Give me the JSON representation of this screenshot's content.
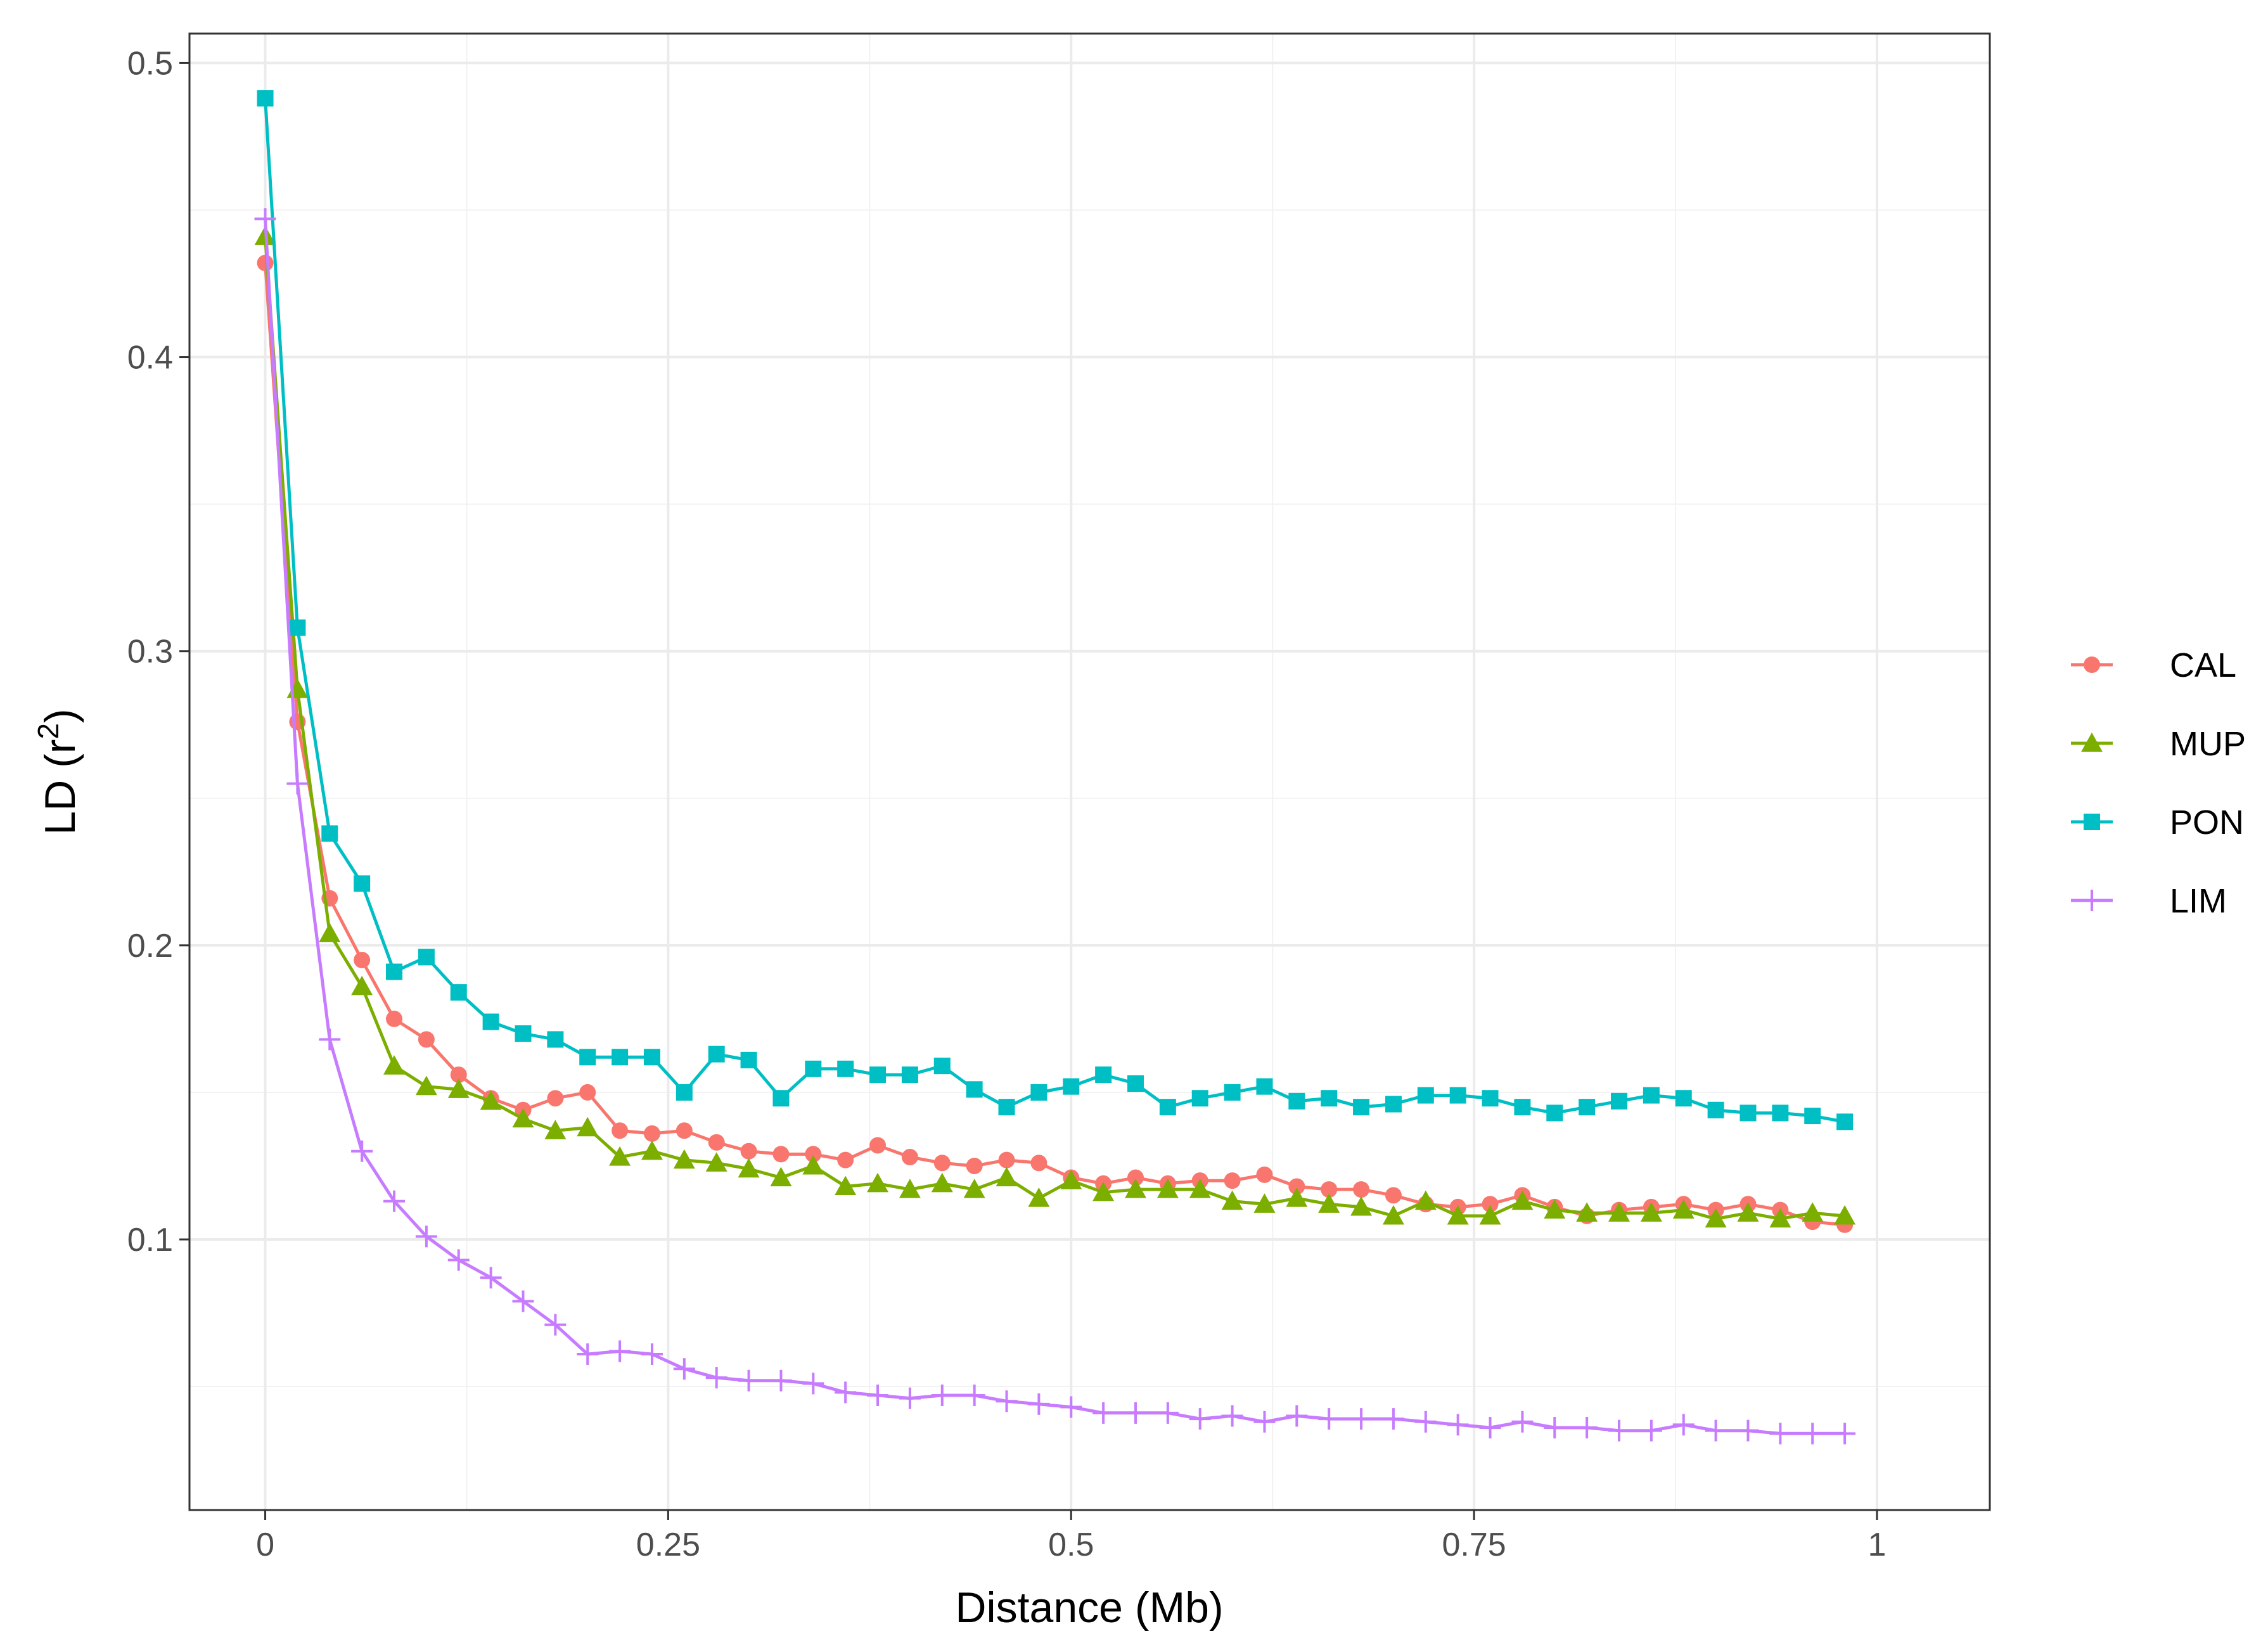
{
  "chart_data": {
    "type": "line",
    "xlabel": "Distance (Mb)",
    "ylabel_main": "LD (r",
    "ylabel_sup": "2",
    "ylabel_close": ")",
    "xlim": [
      -0.047,
      1.07
    ],
    "ylim": [
      0.008,
      0.51
    ],
    "x_ticks": [
      0,
      0.25,
      0.5,
      0.75,
      1
    ],
    "x_tick_labels": [
      "0",
      "0.25",
      "0.5",
      "0.75",
      "1"
    ],
    "y_ticks": [
      0.1,
      0.2,
      0.3,
      0.4,
      0.5
    ],
    "y_tick_labels": [
      "0.1",
      "0.2",
      "0.3",
      "0.4",
      "0.5"
    ],
    "y_minor_ticks": [
      0.05,
      0.15,
      0.25,
      0.35,
      0.45
    ],
    "x_minor_ticks": [
      0.125,
      0.375,
      0.625,
      0.875
    ],
    "grid": true,
    "legend_position": "right",
    "x": [
      0,
      0.02,
      0.04,
      0.06,
      0.08,
      0.1,
      0.12,
      0.14,
      0.16,
      0.18,
      0.2,
      0.22,
      0.24,
      0.26,
      0.28,
      0.3,
      0.32,
      0.34,
      0.36,
      0.38,
      0.4,
      0.42,
      0.44,
      0.46,
      0.48,
      0.5,
      0.52,
      0.54,
      0.56,
      0.58,
      0.6,
      0.62,
      0.64,
      0.66,
      0.68,
      0.7,
      0.72,
      0.74,
      0.76,
      0.78,
      0.8,
      0.82,
      0.84,
      0.86,
      0.88,
      0.9,
      0.92,
      0.94,
      0.96,
      0.98
    ],
    "series": [
      {
        "name": "CAL",
        "color": "#F8766D",
        "marker": "circle",
        "values": [
          0.432,
          0.276,
          0.216,
          0.195,
          0.175,
          0.168,
          0.156,
          0.148,
          0.144,
          0.148,
          0.15,
          0.137,
          0.136,
          0.137,
          0.133,
          0.13,
          0.129,
          0.129,
          0.127,
          0.132,
          0.128,
          0.126,
          0.125,
          0.127,
          0.126,
          0.121,
          0.119,
          0.121,
          0.119,
          0.12,
          0.12,
          0.122,
          0.118,
          0.117,
          0.117,
          0.115,
          0.112,
          0.111,
          0.112,
          0.115,
          0.111,
          0.108,
          0.11,
          0.111,
          0.112,
          0.11,
          0.112,
          0.11,
          0.106,
          0.105
        ]
      },
      {
        "name": "MUP",
        "color": "#7CAE00",
        "marker": "triangle",
        "values": [
          0.441,
          0.287,
          0.204,
          0.186,
          0.159,
          0.152,
          0.151,
          0.147,
          0.141,
          0.137,
          0.138,
          0.128,
          0.13,
          0.127,
          0.126,
          0.124,
          0.121,
          0.125,
          0.118,
          0.119,
          0.117,
          0.119,
          0.117,
          0.121,
          0.114,
          0.12,
          0.116,
          0.117,
          0.117,
          0.117,
          0.113,
          0.112,
          0.114,
          0.112,
          0.111,
          0.108,
          0.113,
          0.108,
          0.108,
          0.113,
          0.11,
          0.109,
          0.109,
          0.109,
          0.11,
          0.107,
          0.109,
          0.107,
          0.109,
          0.108
        ]
      },
      {
        "name": "PON",
        "color": "#00BFC4",
        "marker": "square",
        "values": [
          0.488,
          0.308,
          0.238,
          0.221,
          0.191,
          0.196,
          0.184,
          0.174,
          0.17,
          0.168,
          0.162,
          0.162,
          0.162,
          0.15,
          0.163,
          0.161,
          0.148,
          0.158,
          0.158,
          0.156,
          0.156,
          0.159,
          0.151,
          0.145,
          0.15,
          0.152,
          0.156,
          0.153,
          0.145,
          0.148,
          0.15,
          0.152,
          0.147,
          0.148,
          0.145,
          0.146,
          0.149,
          0.149,
          0.148,
          0.145,
          0.143,
          0.145,
          0.147,
          0.149,
          0.148,
          0.144,
          0.143,
          0.143,
          0.142,
          0.14
        ]
      },
      {
        "name": "LIM",
        "color": "#C77CFF",
        "marker": "plus",
        "values": [
          0.447,
          0.255,
          0.168,
          0.13,
          0.113,
          0.101,
          0.093,
          0.087,
          0.079,
          0.071,
          0.061,
          0.062,
          0.061,
          0.056,
          0.053,
          0.052,
          0.052,
          0.051,
          0.048,
          0.047,
          0.046,
          0.047,
          0.047,
          0.045,
          0.044,
          0.043,
          0.041,
          0.041,
          0.041,
          0.039,
          0.04,
          0.038,
          0.04,
          0.039,
          0.039,
          0.039,
          0.038,
          0.037,
          0.036,
          0.038,
          0.036,
          0.036,
          0.035,
          0.035,
          0.037,
          0.035,
          0.035,
          0.034,
          0.034,
          0.034
        ]
      }
    ]
  }
}
